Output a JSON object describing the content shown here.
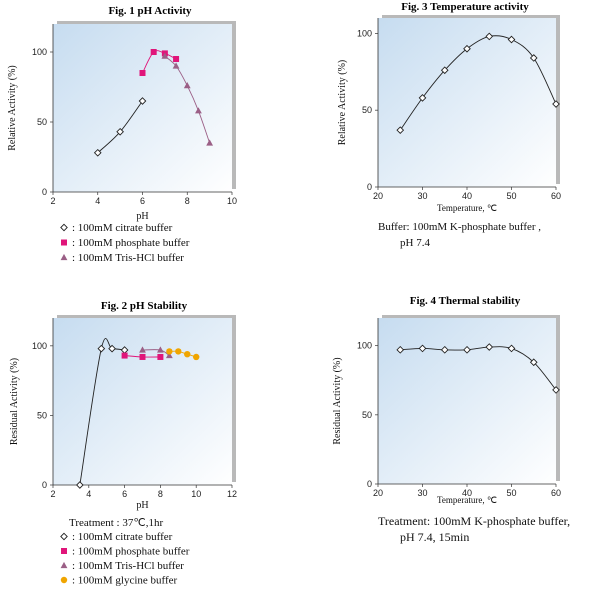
{
  "chart_data": [
    {
      "id": "c1",
      "type": "line",
      "title": "Fig. 1  pH Activity",
      "xlabel": "pH",
      "ylabel": "Relative Activity (%)",
      "xlim": [
        2,
        10
      ],
      "ylim": [
        0,
        120
      ],
      "xticks": [
        "2",
        "4",
        "6",
        "8",
        "10"
      ],
      "yticks": [
        "0",
        "50",
        "100"
      ],
      "legend": "bottom",
      "series": [
        {
          "name": "100mM citrate buffer",
          "marker": "diamond-open",
          "color": "#222222",
          "x": [
            4,
            5,
            6
          ],
          "y": [
            28,
            43,
            65
          ]
        },
        {
          "name": "100mM phosphate buffer",
          "marker": "square",
          "color": "#e0157a",
          "x": [
            6,
            6.5,
            7,
            7.5
          ],
          "y": [
            85,
            100,
            99,
            95
          ]
        },
        {
          "name": "100mM Tris-HCl buffer",
          "marker": "triangle",
          "color": "#9b5f86",
          "x": [
            7,
            7.5,
            8,
            8.5,
            9
          ],
          "y": [
            97,
            90,
            76,
            58,
            35
          ]
        }
      ],
      "notes": []
    },
    {
      "id": "c2",
      "type": "line",
      "title": "Fig. 2  pH Stability",
      "xlabel": "pH",
      "ylabel": "Residual Activity (%)",
      "xlim": [
        2,
        12
      ],
      "ylim": [
        0,
        120
      ],
      "xticks": [
        "2",
        "4",
        "6",
        "8",
        "10",
        "12"
      ],
      "yticks": [
        "0",
        "50",
        "100"
      ],
      "legend": "bottom",
      "series": [
        {
          "name": "100mM citrate buffer",
          "marker": "diamond-open",
          "color": "#222222",
          "x": [
            3.5,
            4.7,
            5.3,
            6
          ],
          "y": [
            0,
            98,
            98,
            97
          ]
        },
        {
          "name": "100mM phosphate buffer",
          "marker": "square",
          "color": "#e0157a",
          "x": [
            6,
            7,
            8
          ],
          "y": [
            93,
            92,
            92
          ]
        },
        {
          "name": "100mM Tris-HCl buffer",
          "marker": "triangle",
          "color": "#9b5f86",
          "x": [
            7,
            8,
            8.5
          ],
          "y": [
            97,
            97,
            93
          ]
        },
        {
          "name": "100mM glycine buffer",
          "marker": "circle",
          "color": "#f0a500",
          "x": [
            8.5,
            9,
            9.5,
            10
          ],
          "y": [
            96,
            96,
            94,
            92
          ]
        }
      ],
      "notes": [
        "Treatment : 37℃,1hr"
      ]
    },
    {
      "id": "c3",
      "type": "line",
      "title": "Fig. 3  Temperature activity",
      "xlabel": "Temperature, ℃",
      "ylabel": "Relative Activity (%)",
      "xlim": [
        20,
        60
      ],
      "ylim": [
        0,
        110
      ],
      "xticks": [
        "20",
        "30",
        "40",
        "50",
        "60"
      ],
      "yticks": [
        "0",
        "50",
        "100"
      ],
      "legend": "none",
      "series": [
        {
          "name": "",
          "marker": "diamond-open",
          "color": "#222222",
          "x": [
            25,
            30,
            35,
            40,
            45,
            50,
            55,
            60
          ],
          "y": [
            37,
            58,
            76,
            90,
            98,
            96,
            84,
            54
          ]
        }
      ],
      "notes": [
        "Buffer: 100mM K-phosphate buffer ,",
        "pH 7.4"
      ]
    },
    {
      "id": "c4",
      "type": "line",
      "title": "Fig. 4  Thermal stability",
      "xlabel": "Temperature, ℃",
      "ylabel": "Residual Activity (%)",
      "xlim": [
        20,
        60
      ],
      "ylim": [
        0,
        120
      ],
      "xticks": [
        "20",
        "30",
        "40",
        "50",
        "60"
      ],
      "yticks": [
        "0",
        "50",
        "100"
      ],
      "legend": "none",
      "series": [
        {
          "name": "",
          "marker": "diamond-open",
          "color": "#222222",
          "x": [
            25,
            30,
            35,
            40,
            45,
            50,
            55,
            60
          ],
          "y": [
            97,
            98,
            97,
            97,
            99,
            98,
            88,
            68
          ]
        }
      ],
      "notes": [
        "Treatment: 100mM K-phosphate buffer,",
        "pH 7.4, 15min"
      ]
    }
  ]
}
